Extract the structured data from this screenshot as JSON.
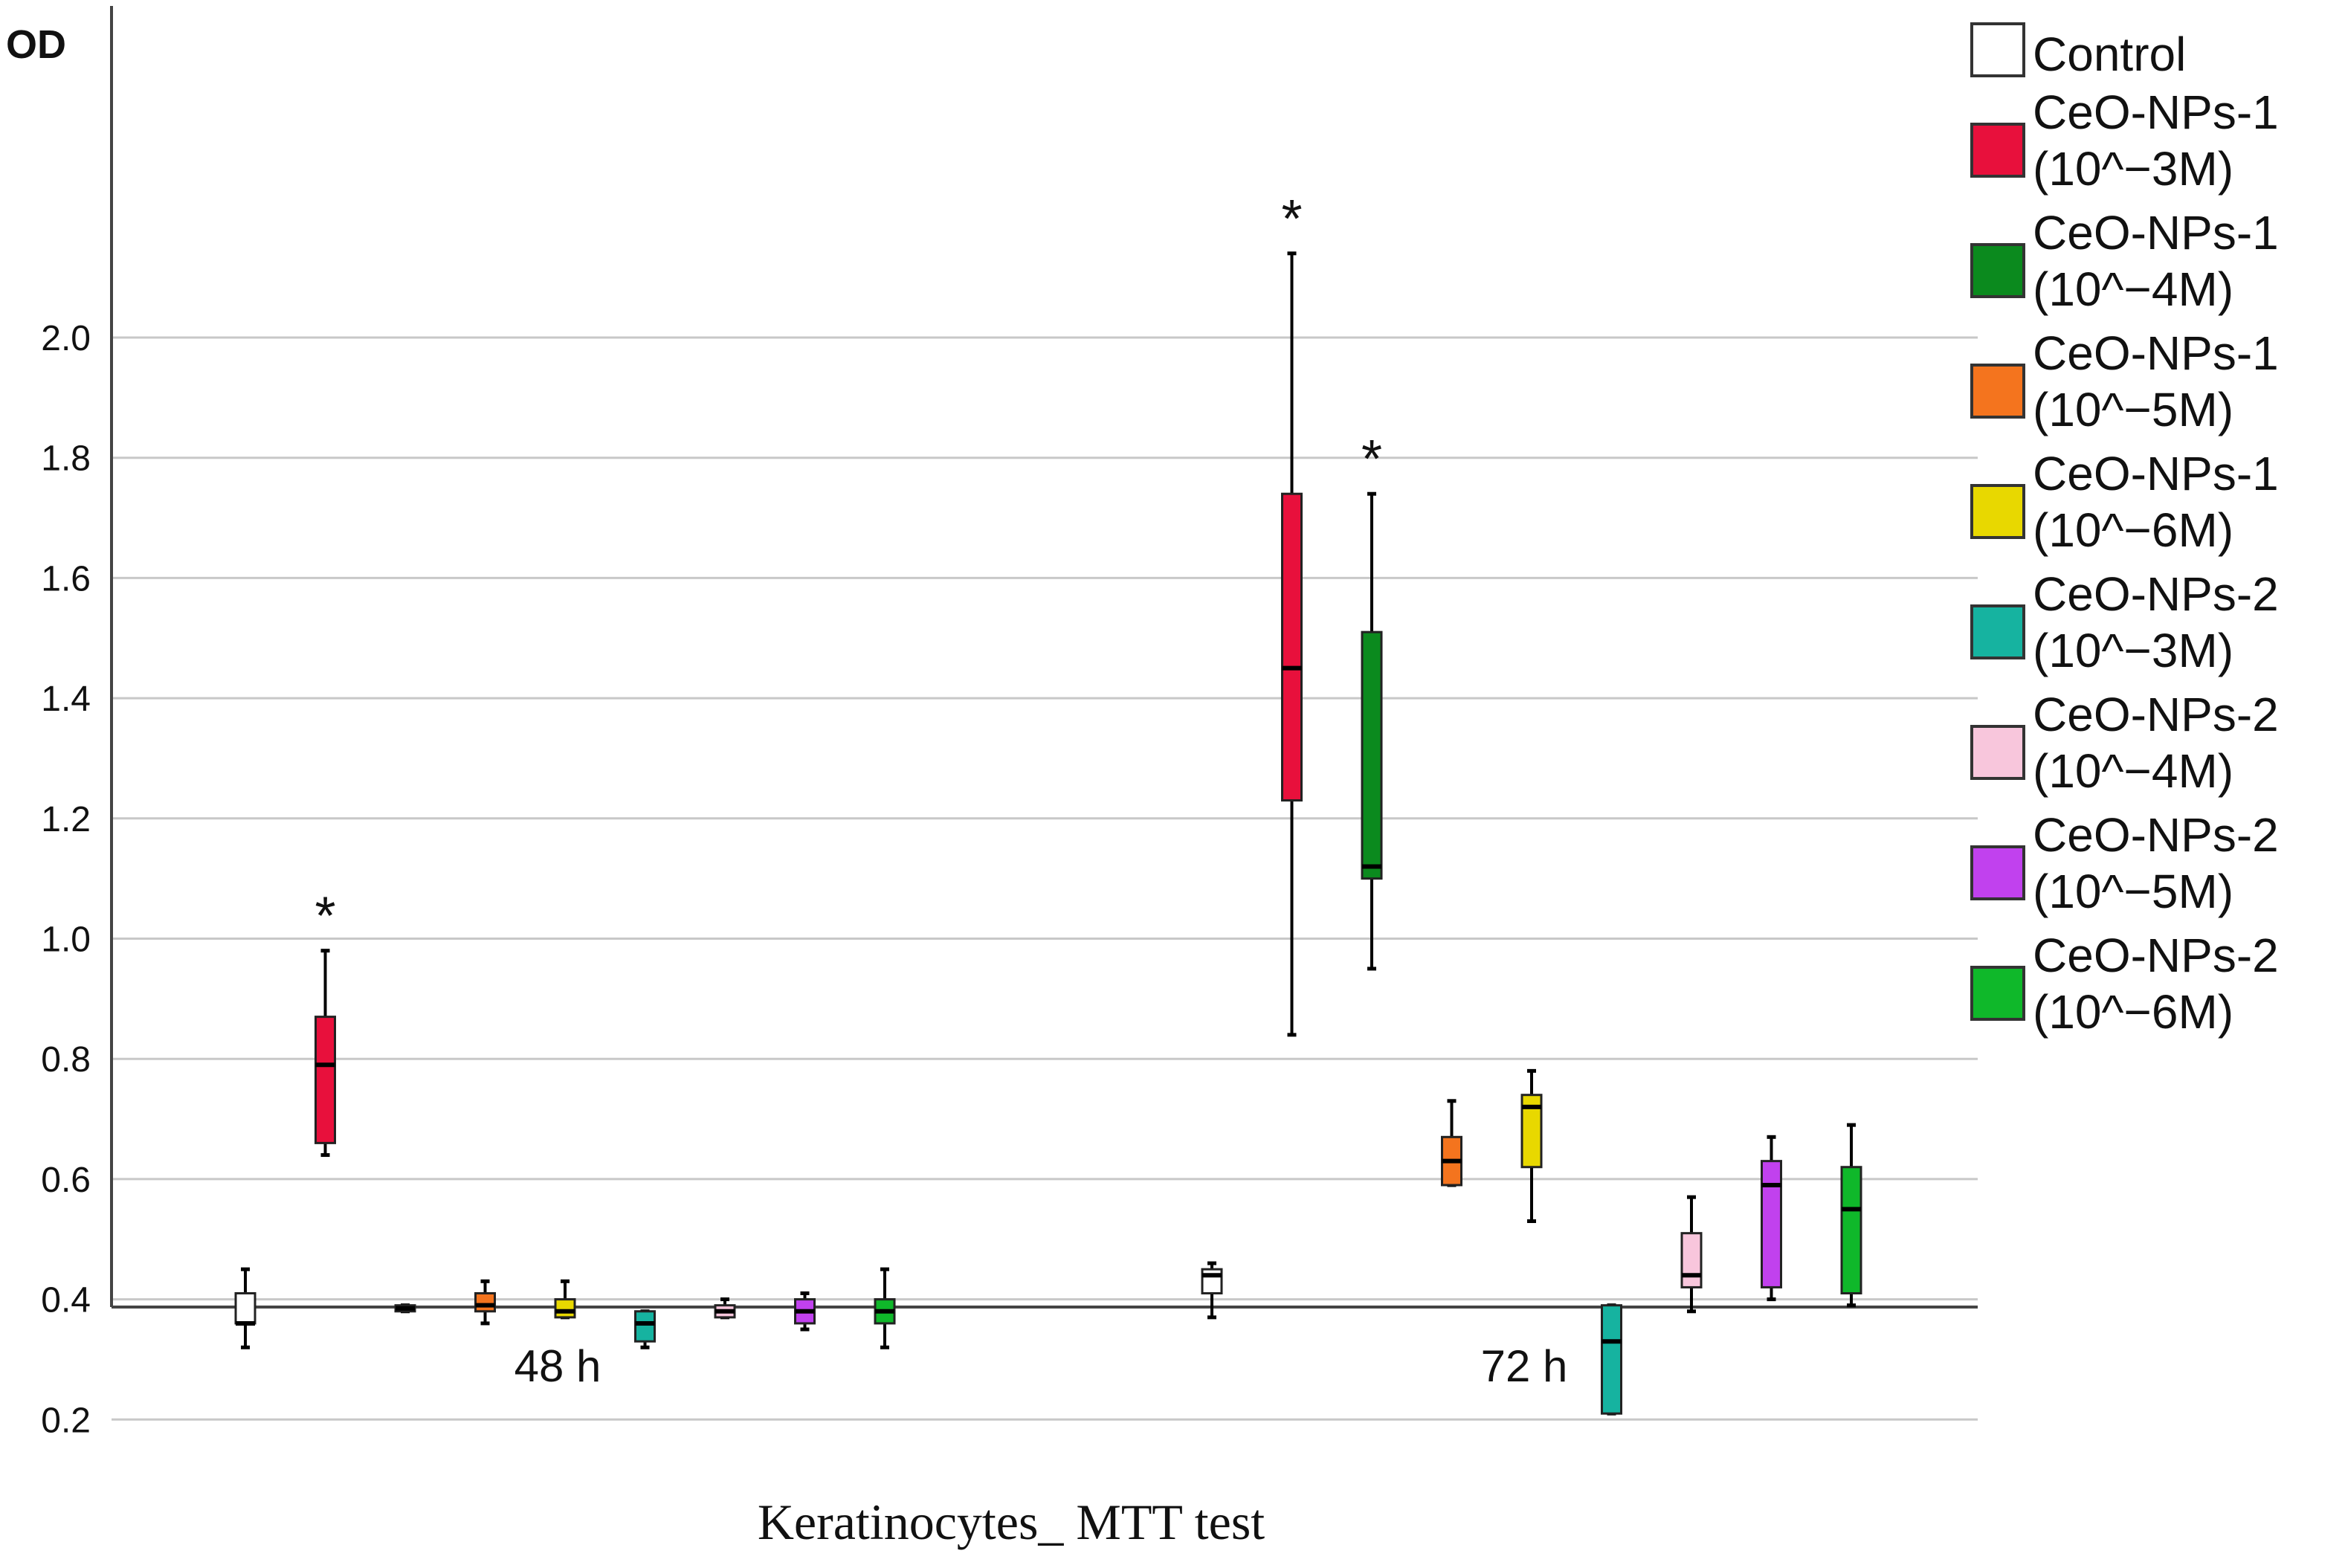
{
  "chart_data": {
    "type": "box",
    "title": "",
    "ylabel": "OD",
    "xlabel": "Keratinocytes_ MTT test",
    "ylim": [
      0.1,
      2.2
    ],
    "yticks": [
      "0.2",
      "0.4",
      "0.6",
      "0.8",
      "1.0",
      "1.2",
      "1.4",
      "1.6",
      "1.8",
      "2.0"
    ],
    "grid": true,
    "legend_position": "right",
    "categories": [
      "48 h",
      "72 h"
    ],
    "series": [
      {
        "name": "Control",
        "color": "#ffffff",
        "boxes": [
          {
            "min": 0.32,
            "q1": 0.36,
            "median": 0.36,
            "q3": 0.41,
            "max": 0.45
          },
          {
            "min": 0.37,
            "q1": 0.41,
            "median": 0.44,
            "q3": 0.45,
            "max": 0.46
          }
        ]
      },
      {
        "name": "CeO-NPs-1 (10^−3M)",
        "color": "#e8103c",
        "boxes": [
          {
            "min": 0.64,
            "q1": 0.66,
            "median": 0.79,
            "q3": 0.87,
            "max": 0.98,
            "star": "*"
          },
          {
            "min": 0.84,
            "q1": 1.23,
            "median": 1.45,
            "q3": 1.74,
            "max": 2.14,
            "star": "*"
          }
        ]
      },
      {
        "name": "CeO-NPs-1 (10^−4M)",
        "color": "#0b8a1e",
        "boxes": [
          {
            "min": 0.38,
            "q1": 0.38,
            "median": 0.385,
            "q3": 0.39,
            "max": 0.39
          },
          {
            "min": 0.95,
            "q1": 1.1,
            "median": 1.12,
            "q3": 1.51,
            "max": 1.74,
            "star": "*"
          }
        ]
      },
      {
        "name": "CeO-NPs-1 (10^−5M)",
        "color": "#f4741e",
        "boxes": [
          {
            "min": 0.36,
            "q1": 0.38,
            "median": 0.39,
            "q3": 0.41,
            "max": 0.43
          },
          {
            "min": 0.59,
            "q1": 0.59,
            "median": 0.63,
            "q3": 0.67,
            "max": 0.73
          }
        ]
      },
      {
        "name": "CeO-NPs-1 (10^−6M)",
        "color": "#e8d800",
        "boxes": [
          {
            "min": 0.37,
            "q1": 0.37,
            "median": 0.38,
            "q3": 0.4,
            "max": 0.43
          },
          {
            "min": 0.53,
            "q1": 0.62,
            "median": 0.72,
            "q3": 0.74,
            "max": 0.78
          }
        ]
      },
      {
        "name": "CeO-NPs-2 (10^−3M)",
        "color": "#16b3a0",
        "boxes": [
          {
            "min": 0.32,
            "q1": 0.33,
            "median": 0.36,
            "q3": 0.38,
            "max": 0.38
          },
          {
            "min": 0.21,
            "q1": 0.21,
            "median": 0.33,
            "q3": 0.39,
            "max": 0.39
          }
        ]
      },
      {
        "name": "CeO-NPs-2 (10^−4M)",
        "color": "#f8c6dc",
        "boxes": [
          {
            "min": 0.37,
            "q1": 0.37,
            "median": 0.38,
            "q3": 0.39,
            "max": 0.4
          },
          {
            "min": 0.38,
            "q1": 0.42,
            "median": 0.44,
            "q3": 0.51,
            "max": 0.57
          }
        ]
      },
      {
        "name": "CeO-NPs-2 (10^−5M)",
        "color": "#c141ee",
        "boxes": [
          {
            "min": 0.35,
            "q1": 0.36,
            "median": 0.38,
            "q3": 0.4,
            "max": 0.41
          },
          {
            "min": 0.4,
            "q1": 0.42,
            "median": 0.59,
            "q3": 0.63,
            "max": 0.67
          }
        ]
      },
      {
        "name": "CeO-NPs-2 (10^−6M)",
        "color": "#0fb82a",
        "boxes": [
          {
            "min": 0.32,
            "q1": 0.36,
            "median": 0.38,
            "q3": 0.4,
            "max": 0.45
          },
          {
            "min": 0.39,
            "q1": 0.41,
            "median": 0.55,
            "q3": 0.62,
            "max": 0.69
          }
        ]
      }
    ]
  },
  "legend": [
    {
      "line1": "Control",
      "line2": ""
    },
    {
      "line1": "CeO-NPs-1",
      "line2": "(10^−3M)"
    },
    {
      "line1": "CeO-NPs-1",
      "line2": "(10^−4M)"
    },
    {
      "line1": "CeO-NPs-1",
      "line2": "(10^−5M)"
    },
    {
      "line1": "CeO-NPs-1",
      "line2": "(10^−6M)"
    },
    {
      "line1": "CeO-NPs-2",
      "line2": "(10^−3M)"
    },
    {
      "line1": "CeO-NPs-2",
      "line2": "(10^−4M)"
    },
    {
      "line1": "CeO-NPs-2",
      "line2": "(10^−5M)"
    },
    {
      "line1": "CeO-NPs-2",
      "line2": "(10^−6M)"
    }
  ]
}
